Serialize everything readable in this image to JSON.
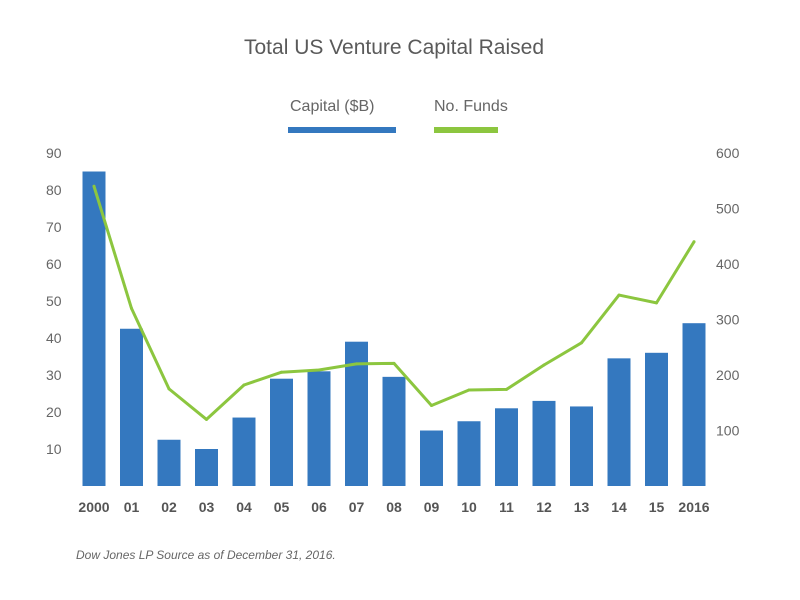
{
  "chart_data": {
    "type": "bar",
    "title": "Total US Venture Capital Raised",
    "categories": [
      "2000",
      "01",
      "02",
      "03",
      "04",
      "05",
      "06",
      "07",
      "08",
      "09",
      "10",
      "11",
      "12",
      "13",
      "14",
      "15",
      "2016"
    ],
    "series": [
      {
        "name": "Capital ($B)",
        "type": "bar",
        "axis": "left",
        "color": "#3478bf",
        "values": [
          85,
          42.5,
          12.5,
          10,
          18.5,
          29,
          31,
          39,
          29.5,
          15,
          17.5,
          21,
          23,
          21.5,
          34.5,
          36,
          44
        ]
      },
      {
        "name": "No. Funds",
        "type": "line",
        "axis": "right",
        "color": "#8cc63f",
        "values": [
          540,
          320,
          175,
          120,
          182,
          205,
          209,
          220,
          221,
          145,
          173,
          174,
          218,
          258,
          344,
          330,
          440
        ]
      }
    ],
    "left_axis": {
      "ylim": [
        0,
        90
      ],
      "ticks": [
        "10",
        "20",
        "30",
        "40",
        "50",
        "60",
        "70",
        "80",
        "90"
      ]
    },
    "right_axis": {
      "ylim": [
        0,
        600
      ],
      "ticks": [
        "100",
        "200",
        "300",
        "400",
        "500",
        "600"
      ]
    },
    "legend_position": "top-center",
    "grid": false
  },
  "source_note": "Dow Jones LP Source as of December 31, 2016."
}
